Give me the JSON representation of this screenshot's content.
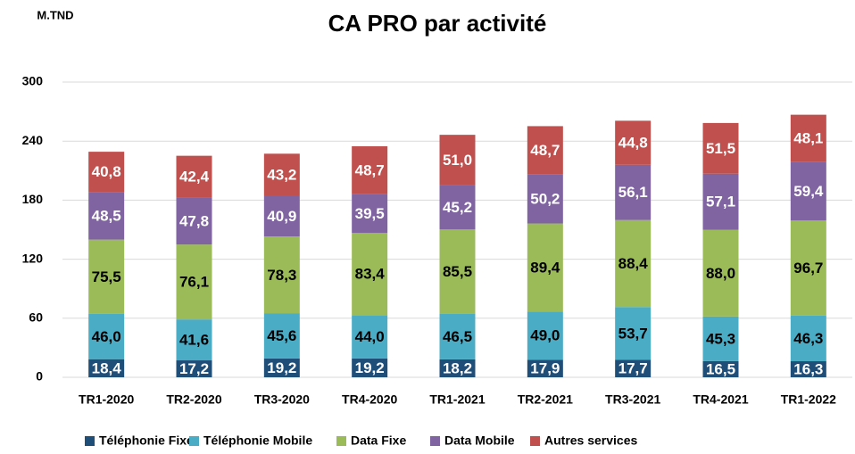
{
  "chart_data": {
    "type": "stacked_bar",
    "title": "CA PRO par activité",
    "y_label": "M.TND",
    "categories": [
      "TR1-2020",
      "TR2-2020",
      "TR3-2020",
      "TR4-2020",
      "TR1-2021",
      "TR2-2021",
      "TR3-2021",
      "TR4-2021",
      "TR1-2022"
    ],
    "series": [
      {
        "name": "Téléphonie Fixe",
        "color": "#1f4e79",
        "label_color": "#ffffff",
        "values": [
          18.4,
          17.2,
          19.2,
          19.2,
          18.2,
          17.9,
          17.7,
          16.5,
          16.3
        ],
        "value_labels": [
          "18,4",
          "17,2",
          "19,2",
          "19,2",
          "18,2",
          "17,9",
          "17,7",
          "16,5",
          "16,3"
        ]
      },
      {
        "name": "Téléphonie Mobile",
        "color": "#4bacc6",
        "label_color": "#000000",
        "values": [
          46.0,
          41.6,
          45.6,
          44.0,
          46.5,
          49.0,
          53.7,
          45.3,
          46.3
        ],
        "value_labels": [
          "46,0",
          "41,6",
          "45,6",
          "44,0",
          "46,5",
          "49,0",
          "53,7",
          "45,3",
          "46,3"
        ]
      },
      {
        "name": "Data Fixe",
        "color": "#9bbb59",
        "label_color": "#000000",
        "values": [
          75.5,
          76.1,
          78.3,
          83.4,
          85.5,
          89.4,
          88.4,
          88.0,
          96.7
        ],
        "value_labels": [
          "75,5",
          "76,1",
          "78,3",
          "83,4",
          "85,5",
          "89,4",
          "88,4",
          "88,0",
          "96,7"
        ]
      },
      {
        "name": "Data Mobile",
        "color": "#8064a2",
        "label_color": "#ffffff",
        "values": [
          48.5,
          47.8,
          40.9,
          39.5,
          45.2,
          50.2,
          56.1,
          57.1,
          59.4
        ],
        "value_labels": [
          "48,5",
          "47,8",
          "40,9",
          "39,5",
          "45,2",
          "50,2",
          "56,1",
          "57,1",
          "59,4"
        ]
      },
      {
        "name": "Autres services",
        "color": "#c0504d",
        "label_color": "#ffffff",
        "values": [
          40.8,
          42.4,
          43.2,
          48.7,
          51.0,
          48.7,
          44.8,
          51.5,
          48.1
        ],
        "value_labels": [
          "40,8",
          "42,4",
          "43,2",
          "48,7",
          "51,0",
          "48,7",
          "44,8",
          "51,5",
          "48,1"
        ]
      }
    ],
    "ylim": [
      0,
      300
    ],
    "yticks": [
      0,
      60,
      120,
      180,
      240,
      300
    ],
    "grid": true,
    "legend": "bottom"
  }
}
